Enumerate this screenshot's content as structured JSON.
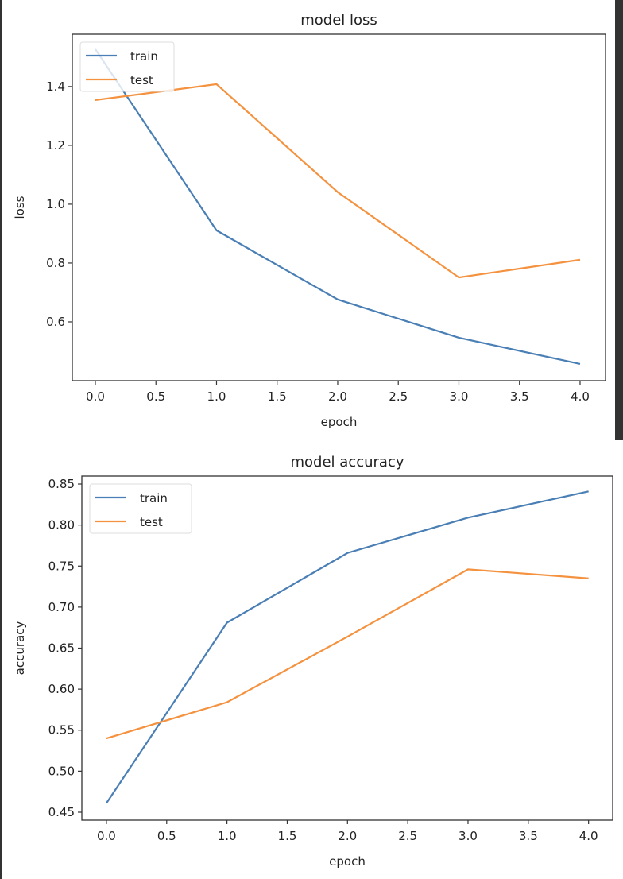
{
  "chart_data": [
    {
      "type": "line",
      "title": "model loss",
      "xlabel": "epoch",
      "ylabel": "loss",
      "x": [
        0,
        1,
        2,
        3,
        4
      ],
      "xlim": [
        -0.19,
        4.21
      ],
      "ylim": [
        0.4,
        1.578
      ],
      "xticks": [
        "0.0",
        "0.5",
        "1.0",
        "1.5",
        "2.0",
        "2.5",
        "3.0",
        "3.5",
        "4.0"
      ],
      "yticks": [
        "0.6",
        "0.8",
        "1.0",
        "1.2",
        "1.4"
      ],
      "legend": "top-left",
      "grid": false,
      "series": [
        {
          "name": "train",
          "color": "#4a7fb5",
          "values": [
            1.527,
            0.911,
            0.676,
            0.546,
            0.457
          ]
        },
        {
          "name": "test",
          "color": "#f4923f",
          "values": [
            1.354,
            1.408,
            1.041,
            0.751,
            0.811
          ]
        }
      ]
    },
    {
      "type": "line",
      "title": "model accuracy",
      "xlabel": "epoch",
      "ylabel": "accuracy",
      "x": [
        0,
        1,
        2,
        3,
        4
      ],
      "xlim": [
        -0.204,
        4.2
      ],
      "ylim": [
        0.4403,
        0.8597
      ],
      "xticks": [
        "0.0",
        "0.5",
        "1.0",
        "1.5",
        "2.0",
        "2.5",
        "3.0",
        "3.5",
        "4.0"
      ],
      "yticks": [
        "0.45",
        "0.50",
        "0.55",
        "0.60",
        "0.65",
        "0.70",
        "0.75",
        "0.80",
        "0.85"
      ],
      "legend": "top-left",
      "grid": false,
      "series": [
        {
          "name": "train",
          "color": "#4a7fb5",
          "values": [
            0.461,
            0.681,
            0.766,
            0.809,
            0.841
          ]
        },
        {
          "name": "test",
          "color": "#f4923f",
          "values": [
            0.54,
            0.584,
            0.664,
            0.746,
            0.735
          ]
        }
      ]
    }
  ]
}
